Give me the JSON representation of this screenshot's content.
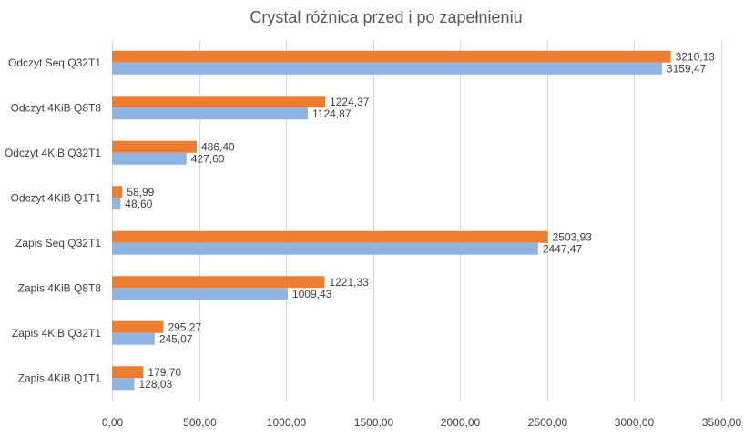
{
  "chart_data": {
    "type": "bar",
    "orientation": "horizontal",
    "title": "Crystal różnica przed i po zapełnieniu",
    "categories": [
      "Odczyt Seq Q32T1",
      "Odczyt 4KiB Q8T8",
      "Odczyt 4KiB Q32T1",
      "Odczyt 4KiB Q1T1",
      "Zapis Seq Q32T1",
      "Zapis 4KiB Q8T8",
      "Zapis 4KiB Q32T1",
      "Zapis 4KiB Q1T1"
    ],
    "series": [
      {
        "color": "#ed7d31",
        "values": [
          3210.13,
          1224.37,
          486.4,
          58.99,
          2503.93,
          1221.33,
          295.27,
          179.7
        ],
        "labels": [
          "3210,13",
          "1224,37",
          "486,40",
          "58,99",
          "2503,93",
          "1221,33",
          "295,27",
          "179,70"
        ]
      },
      {
        "color": "#8eb4e3",
        "values": [
          3159.47,
          1124.87,
          427.6,
          48.6,
          2447.47,
          1009.43,
          245.07,
          128.03
        ],
        "labels": [
          "3159,47",
          "1124,87",
          "427,60",
          "48,60",
          "2447,47",
          "1009,43",
          "245,07",
          "128,03"
        ]
      }
    ],
    "xlim": [
      0,
      3500
    ],
    "xticks": [
      0,
      500,
      1000,
      1500,
      2000,
      2500,
      3000,
      3500
    ],
    "xtick_labels": [
      "0,00",
      "500,00",
      "1000,00",
      "1500,00",
      "2000,00",
      "2500,00",
      "3000,00",
      "3500,00"
    ],
    "grid": true,
    "legend": "none",
    "xlabel": "",
    "ylabel": ""
  }
}
